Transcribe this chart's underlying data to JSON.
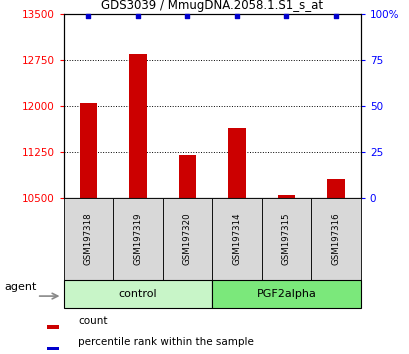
{
  "title": "GDS3039 / MmugDNA.2058.1.S1_s_at",
  "samples": [
    "GSM197318",
    "GSM197319",
    "GSM197320",
    "GSM197314",
    "GSM197315",
    "GSM197316"
  ],
  "count_values": [
    12050,
    12850,
    11200,
    11650,
    10560,
    10820
  ],
  "percentile_values": [
    99,
    99,
    99,
    99,
    99,
    99
  ],
  "ylim_left": [
    10500,
    13500
  ],
  "ylim_right": [
    0,
    100
  ],
  "yticks_left": [
    10500,
    11250,
    12000,
    12750,
    13500
  ],
  "yticks_right": [
    0,
    25,
    50,
    75,
    100
  ],
  "ytick_labels_right": [
    "0",
    "25",
    "50",
    "75",
    "100%"
  ],
  "groups": [
    {
      "label": "control",
      "start": 0,
      "end": 3,
      "color": "#c8f5c8"
    },
    {
      "label": "PGF2alpha",
      "start": 3,
      "end": 6,
      "color": "#7be87b"
    }
  ],
  "bar_color": "#cc0000",
  "dot_color": "#0000cc",
  "bar_width": 0.35,
  "sample_box_color": "#d8d8d8",
  "agent_label": "agent",
  "legend_items": [
    {
      "label": "count",
      "color": "#cc0000"
    },
    {
      "label": "percentile rank within the sample",
      "color": "#0000cc"
    }
  ]
}
